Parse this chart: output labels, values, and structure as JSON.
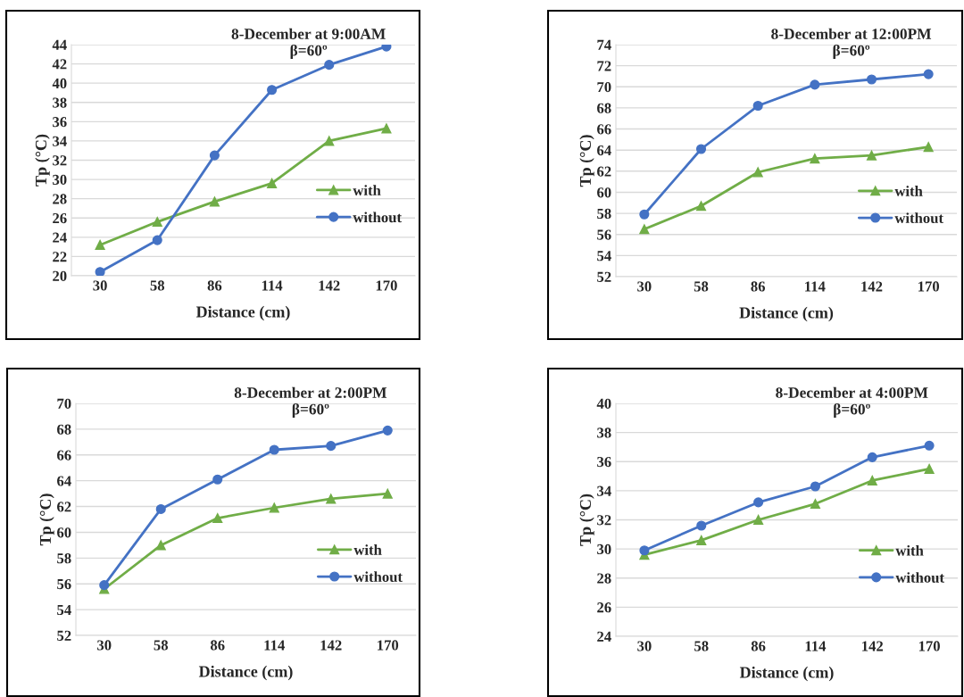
{
  "chart_data": [
    {
      "type": "line",
      "title": "8-December at 9:00AM",
      "subtitle": "β=60º",
      "xlabel": "Distance (cm)",
      "ylabel": "Tp (°C)",
      "categories": [
        "30",
        "58",
        "86",
        "114",
        "142",
        "170"
      ],
      "ylim": [
        20,
        44
      ],
      "yticks": [
        20,
        22,
        24,
        26,
        28,
        30,
        32,
        34,
        36,
        38,
        40,
        42,
        44
      ],
      "grid": "y",
      "legend": "bottom right",
      "series": [
        {
          "name": "with",
          "color": "#70ad47",
          "marker": "triangle",
          "values": [
            23.2,
            25.6,
            27.7,
            29.6,
            34.0,
            35.3
          ]
        },
        {
          "name": "without",
          "color": "#4472c4",
          "marker": "circle",
          "values": [
            20.4,
            23.7,
            32.5,
            39.3,
            41.9,
            43.8
          ]
        }
      ]
    },
    {
      "type": "line",
      "title": "8-December at 12:00PM",
      "subtitle": "β=60º",
      "xlabel": "Distance (cm)",
      "ylabel": "Tp (°C)",
      "categories": [
        "30",
        "58",
        "86",
        "114",
        "142",
        "170"
      ],
      "ylim": [
        52,
        74
      ],
      "yticks": [
        52,
        54,
        56,
        58,
        60,
        62,
        64,
        66,
        68,
        70,
        72,
        74
      ],
      "grid": "y",
      "legend": "bottom right",
      "series": [
        {
          "name": "with",
          "color": "#70ad47",
          "marker": "triangle",
          "values": [
            56.5,
            58.7,
            61.9,
            63.2,
            63.5,
            64.3
          ]
        },
        {
          "name": "without",
          "color": "#4472c4",
          "marker": "circle",
          "values": [
            57.9,
            64.1,
            68.2,
            70.2,
            70.7,
            71.2
          ]
        }
      ]
    },
    {
      "type": "line",
      "title": "8-December at 2:00PM",
      "subtitle": "β=60º",
      "xlabel": "Distance (cm)",
      "ylabel": "Tp (°C)",
      "categories": [
        "30",
        "58",
        "86",
        "114",
        "142",
        "170"
      ],
      "ylim": [
        52,
        70
      ],
      "yticks": [
        52,
        54,
        56,
        58,
        60,
        62,
        64,
        66,
        68,
        70
      ],
      "grid": "y",
      "legend": "bottom right",
      "series": [
        {
          "name": "with",
          "color": "#70ad47",
          "marker": "triangle",
          "values": [
            55.6,
            59.0,
            61.1,
            61.9,
            62.6,
            63.0
          ]
        },
        {
          "name": "without",
          "color": "#4472c4",
          "marker": "circle",
          "values": [
            55.9,
            61.8,
            64.1,
            66.4,
            66.7,
            67.9
          ]
        }
      ]
    },
    {
      "type": "line",
      "title": "8-December at 4:00PM",
      "subtitle": "β=60º",
      "xlabel": "Distance (cm)",
      "ylabel": "Tp (°C)",
      "categories": [
        "30",
        "58",
        "86",
        "114",
        "142",
        "170"
      ],
      "ylim": [
        24,
        40
      ],
      "yticks": [
        24,
        26,
        28,
        30,
        32,
        34,
        36,
        38,
        40
      ],
      "grid": "y",
      "legend": "bottom right",
      "series": [
        {
          "name": "with",
          "color": "#70ad47",
          "marker": "triangle",
          "values": [
            29.6,
            30.6,
            32.0,
            33.1,
            34.7,
            35.5
          ]
        },
        {
          "name": "without",
          "color": "#4472c4",
          "marker": "circle",
          "values": [
            29.9,
            31.6,
            33.2,
            34.3,
            36.3,
            37.1
          ]
        }
      ]
    }
  ]
}
